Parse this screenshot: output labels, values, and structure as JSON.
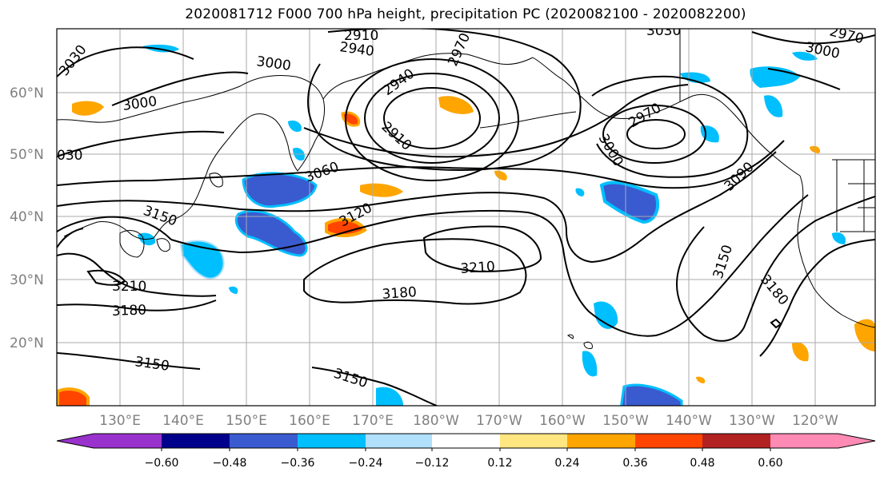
{
  "title": "2020081712 F000 700 hPa height, precipitation PC (2020082100 - 2020082200)",
  "map": {
    "lat_labels": [
      "60°N",
      "50°N",
      "40°N",
      "30°N",
      "20°N"
    ],
    "lon_labels": [
      "130°E",
      "140°E",
      "150°E",
      "160°E",
      "170°E",
      "180°W",
      "170°W",
      "160°W",
      "150°W",
      "140°W",
      "130°W",
      "120°W"
    ],
    "contour_labels": [
      "3030",
      "2910",
      "2940",
      "2970",
      "3030",
      "3000",
      "3000",
      "2940",
      "2970",
      "3000",
      "3000",
      "2910",
      "2970",
      "3000",
      "030",
      "3060",
      "3090",
      "3150",
      "3120",
      "3210",
      "3210",
      "3150",
      "3180",
      "3180",
      "3180",
      "3150",
      "3150"
    ],
    "contour_color": "#000000",
    "grid_color": "#aaaaaa",
    "land_color": "#000000"
  },
  "colorbar": {
    "tick_labels": [
      "−0.60",
      "−0.48",
      "−0.36",
      "−0.24",
      "−0.12",
      "0.12",
      "0.24",
      "0.36",
      "0.48",
      "0.60"
    ],
    "colors": [
      "#9932cc",
      "#00008b",
      "#3a5bd0",
      "#00bfff",
      "#b0e0fa",
      "#ffffff",
      "#ffe680",
      "#ffa500",
      "#ff4500",
      "#b22222",
      "#ff8ab4"
    ]
  }
}
